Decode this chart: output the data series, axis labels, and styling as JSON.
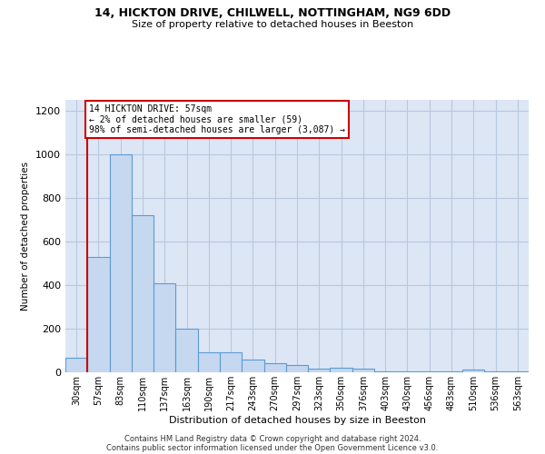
{
  "title1": "14, HICKTON DRIVE, CHILWELL, NOTTINGHAM, NG9 6DD",
  "title2": "Size of property relative to detached houses in Beeston",
  "xlabel": "Distribution of detached houses by size in Beeston",
  "ylabel": "Number of detached properties",
  "bar_color": "#c5d8f0",
  "bar_edge_color": "#5b9bd5",
  "annotation_line_color": "#cc0000",
  "annotation_box_color": "#cc0000",
  "background_color": "#ffffff",
  "axes_bg_color": "#dce6f5",
  "grid_color": "#b8c8de",
  "categories": [
    "30sqm",
    "57sqm",
    "83sqm",
    "110sqm",
    "137sqm",
    "163sqm",
    "190sqm",
    "217sqm",
    "243sqm",
    "270sqm",
    "297sqm",
    "323sqm",
    "350sqm",
    "376sqm",
    "403sqm",
    "430sqm",
    "456sqm",
    "483sqm",
    "510sqm",
    "536sqm",
    "563sqm"
  ],
  "values": [
    65,
    530,
    1000,
    720,
    410,
    200,
    90,
    90,
    60,
    40,
    32,
    18,
    20,
    18,
    5,
    5,
    5,
    5,
    12,
    5,
    5
  ],
  "ylim": [
    0,
    1250
  ],
  "yticks": [
    0,
    200,
    400,
    600,
    800,
    1000,
    1200
  ],
  "property_line_x": 0.5,
  "annotation_text": "14 HICKTON DRIVE: 57sqm\n← 2% of detached houses are smaller (59)\n98% of semi-detached houses are larger (3,087) →",
  "footer1": "Contains HM Land Registry data © Crown copyright and database right 2024.",
  "footer2": "Contains public sector information licensed under the Open Government Licence v3.0."
}
